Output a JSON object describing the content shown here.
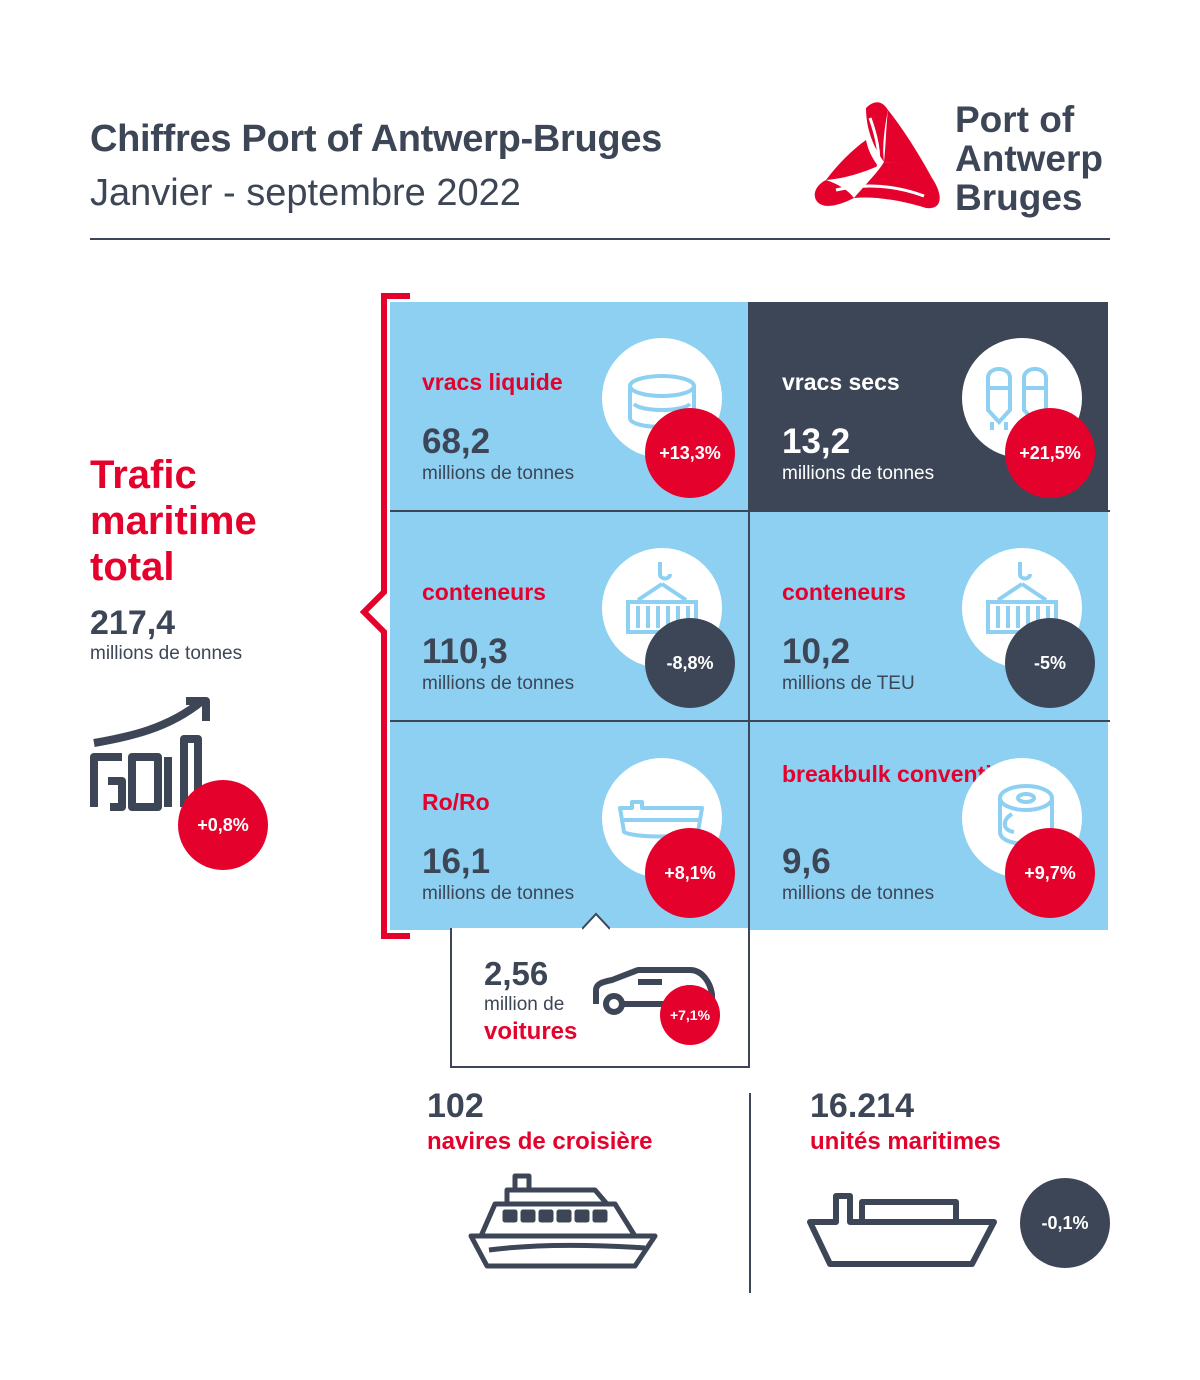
{
  "header": {
    "title": "Chiffres Port of Antwerp-Bruges",
    "subtitle": "Janvier - septembre 2022",
    "logo_lines": [
      "Port of",
      "Antwerp",
      "Bruges"
    ]
  },
  "colors": {
    "red": "#e4022d",
    "navy": "#3d4656",
    "light_blue": "#8dd0f2"
  },
  "total": {
    "title": "Trafic maritime total",
    "value": "217,4",
    "unit": "millions de tonnes",
    "change": "+0,8%",
    "icon": "growth-chart-icon"
  },
  "tiles": [
    {
      "label": "vracs liquide",
      "value": "68,2",
      "unit": "millions de tonnes",
      "change": "+13,3%",
      "icon": "tank-icon",
      "style": "light",
      "trend": "up"
    },
    {
      "label": "vracs secs",
      "value": "13,2",
      "unit": "millions de tonnes",
      "change": "+21,5%",
      "icon": "silo-icon",
      "style": "dark",
      "trend": "up"
    },
    {
      "label": "conteneurs",
      "value": "110,3",
      "unit": "millions de tonnes",
      "change": "-8,8%",
      "icon": "container-crane-icon",
      "style": "light",
      "trend": "down"
    },
    {
      "label": "conteneurs",
      "value": "10,2",
      "unit": "millions de TEU",
      "change": "-5%",
      "icon": "container-crane-icon",
      "style": "light",
      "trend": "down"
    },
    {
      "label": "Ro/Ro",
      "value": "16,1",
      "unit": "millions de tonnes",
      "change": "+8,1%",
      "icon": "roro-ship-icon",
      "style": "light",
      "trend": "up"
    },
    {
      "label": "breakbulk conventionnel",
      "value": "9,6",
      "unit": "millions de tonnes",
      "change": "+9,7%",
      "icon": "steel-coil-icon",
      "style": "light",
      "trend": "up"
    }
  ],
  "cars": {
    "value": "2,56",
    "unit": "million de",
    "label": "voitures",
    "change": "+7,1%",
    "icon": "car-icon"
  },
  "cruise": {
    "value": "102",
    "label": "navires de croisière",
    "icon": "cruise-ship-icon"
  },
  "vessels": {
    "value": "16.214",
    "label": "unités maritimes",
    "change": "-0,1%",
    "icon": "cargo-vessel-icon"
  }
}
